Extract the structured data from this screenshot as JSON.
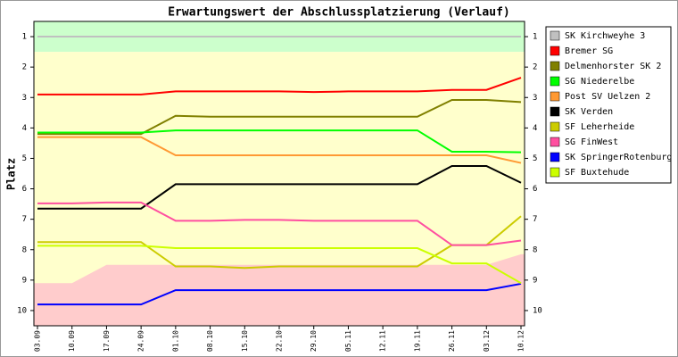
{
  "chart_data": {
    "type": "line",
    "title": "Erwartungswert der Abschlussplatzierung (Verlauf)",
    "y_label": "Platz",
    "categories": [
      "03.09",
      "10.09",
      "17.09",
      "24.09",
      "01.10",
      "08.10",
      "15.10",
      "22.10",
      "29.10",
      "05.11",
      "12.11",
      "19.11",
      "26.11",
      "03.12",
      "10.12"
    ],
    "ylim": [
      0.5,
      10.5
    ],
    "invert_y": true,
    "yticks": [
      1,
      2,
      3,
      4,
      5,
      6,
      7,
      8,
      9,
      10
    ],
    "right_axis_ticks": true,
    "legend": "right",
    "bands": [
      {
        "from": 0.5,
        "to": 1.5,
        "color": "#ccffcc"
      },
      {
        "from": 1.5,
        "to": 10.5,
        "color": "#ffffcc"
      }
    ],
    "lower_zone": {
      "color": "#ffcccc",
      "values": [
        9.1,
        9.1,
        8.5,
        8.5,
        8.5,
        8.5,
        8.5,
        8.5,
        8.5,
        8.5,
        8.5,
        8.5,
        8.5,
        8.5,
        8.15
      ]
    },
    "series": [
      {
        "name": "SK Kirchweyhe 3",
        "color": "#c0c0c0",
        "values": [
          1,
          1,
          1,
          1,
          1,
          1,
          1,
          1,
          1,
          1,
          1,
          1,
          1,
          1,
          1
        ]
      },
      {
        "name": "Bremer SG",
        "color": "#ff0000",
        "values": [
          2.9,
          2.9,
          2.9,
          2.9,
          2.8,
          2.8,
          2.8,
          2.8,
          2.82,
          2.8,
          2.8,
          2.8,
          2.75,
          2.75,
          2.35
        ]
      },
      {
        "name": "Delmenhorster SK 2",
        "color": "#808000",
        "values": [
          4.2,
          4.2,
          4.2,
          4.2,
          3.6,
          3.63,
          3.63,
          3.63,
          3.63,
          3.63,
          3.63,
          3.63,
          3.08,
          3.08,
          3.15
        ]
      },
      {
        "name": "SG Niederelbe",
        "color": "#00ff00",
        "values": [
          4.15,
          4.15,
          4.15,
          4.15,
          4.08,
          4.08,
          4.08,
          4.08,
          4.08,
          4.08,
          4.08,
          4.08,
          4.78,
          4.78,
          4.8
        ]
      },
      {
        "name": "Post SV Uelzen 2",
        "color": "#ff9933",
        "values": [
          4.3,
          4.3,
          4.3,
          4.3,
          4.9,
          4.9,
          4.9,
          4.9,
          4.9,
          4.9,
          4.9,
          4.9,
          4.9,
          4.9,
          5.15
        ]
      },
      {
        "name": "SK Verden",
        "color": "#000000",
        "values": [
          6.65,
          6.65,
          6.65,
          6.65,
          5.85,
          5.85,
          5.85,
          5.85,
          5.85,
          5.85,
          5.85,
          5.85,
          5.25,
          5.25,
          5.8
        ]
      },
      {
        "name": "SF Leherheide",
        "color": "#cccc00",
        "values": [
          7.75,
          7.75,
          7.75,
          7.75,
          8.55,
          8.55,
          8.6,
          8.55,
          8.55,
          8.55,
          8.55,
          8.55,
          7.85,
          7.85,
          6.9
        ]
      },
      {
        "name": "SG FinWest",
        "color": "#ff4fa0",
        "values": [
          6.48,
          6.48,
          6.45,
          6.45,
          7.05,
          7.05,
          7.02,
          7.02,
          7.05,
          7.05,
          7.05,
          7.05,
          7.85,
          7.85,
          7.7
        ]
      },
      {
        "name": "SK SpringerRotenburg",
        "color": "#0000ff",
        "values": [
          9.8,
          9.8,
          9.8,
          9.8,
          9.33,
          9.33,
          9.33,
          9.33,
          9.33,
          9.33,
          9.33,
          9.33,
          9.33,
          9.33,
          9.12
        ]
      },
      {
        "name": "SF Buxtehude",
        "color": "#ccff00",
        "values": [
          7.87,
          7.87,
          7.87,
          7.87,
          7.95,
          7.95,
          7.95,
          7.95,
          7.95,
          7.95,
          7.95,
          7.95,
          8.45,
          8.45,
          9.1
        ]
      }
    ]
  }
}
